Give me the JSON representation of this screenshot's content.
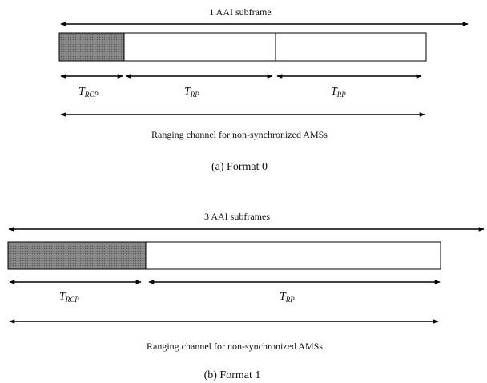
{
  "format0": {
    "span_label": "1 AAI subframe",
    "t_rcp": {
      "letter": "T",
      "sub": "RCP"
    },
    "t_rp_1": {
      "letter": "T",
      "sub": "RP"
    },
    "t_rp_2": {
      "letter": "T",
      "sub": "RP"
    },
    "channel_label": "Ranging channel for non-synchronized AMSs",
    "caption": "(a) Format 0"
  },
  "format1": {
    "span_label": "3 AAI subframes",
    "t_rcp": {
      "letter": "T",
      "sub": "RCP"
    },
    "t_rp": {
      "letter": "T",
      "sub": "RP"
    },
    "channel_label": "Ranging channel for non-synchronized AMSs",
    "caption": "(b) Format 1"
  },
  "colors": {
    "shaded_block": "#7a7a7a",
    "line": "#000000"
  }
}
